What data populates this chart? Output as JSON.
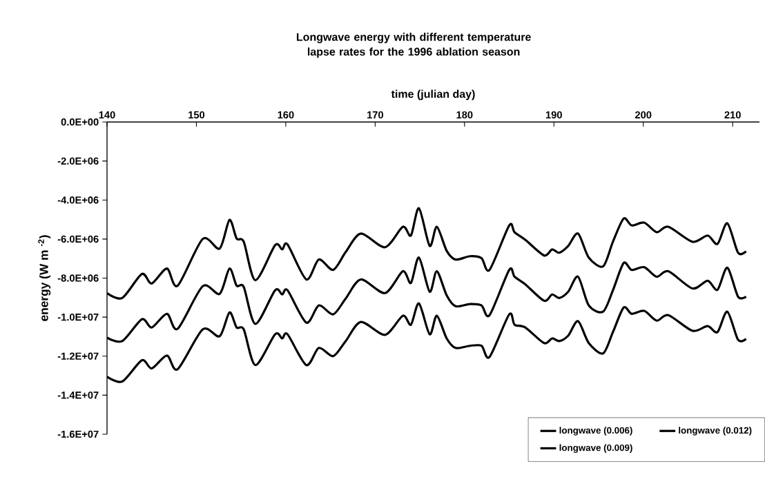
{
  "chart_data": {
    "type": "line",
    "title": "Longwave energy with different temperature lapse rates for the 1996 ablation season",
    "xlabel": "time (julian day)",
    "ylabel": "energy (W m $^{-2}$)",
    "x": [
      140,
      141.7,
      143.9,
      145,
      146.7,
      147.9,
      150.7,
      152.6,
      153.7,
      154.5,
      155.3,
      156.6,
      158.8,
      159.6,
      160.2,
      162.3,
      163.7,
      165.3,
      166.7,
      168.4,
      171.1,
      173.1,
      174.0,
      174.9,
      176.1,
      176.9,
      178.0,
      179.0,
      180.6,
      181.9,
      182.8,
      185.0,
      185.6,
      186.8,
      188.9,
      189.8,
      190.6,
      191.6,
      192.7,
      193.9,
      195.5,
      196.6,
      197.8,
      198.7,
      200.1,
      201.5,
      202.8,
      205.5,
      207.2,
      208.3,
      209.4,
      210.6,
      211.5
    ],
    "series": [
      {
        "name": "longwave (0.006)",
        "color": "#000000",
        "values": [
          -8770000.0,
          -9020000.0,
          -7790000.0,
          -8280000.0,
          -7510000.0,
          -8390000.0,
          -6000000.0,
          -6490000.0,
          -5020000.0,
          -5970000.0,
          -6140000.0,
          -8110000.0,
          -6320000.0,
          -6530000.0,
          -6280000.0,
          -8070000.0,
          -7050000.0,
          -7580000.0,
          -6670000.0,
          -5720000.0,
          -6420000.0,
          -5370000.0,
          -5820000.0,
          -4420000.0,
          -6350000.0,
          -5370000.0,
          -6600000.0,
          -7050000.0,
          -6880000.0,
          -6980000.0,
          -7580000.0,
          -5300000.0,
          -5650000.0,
          -6040000.0,
          -6840000.0,
          -6530000.0,
          -6700000.0,
          -6350000.0,
          -5720000.0,
          -6950000.0,
          -7400000.0,
          -6140000.0,
          -4950000.0,
          -5300000.0,
          -5160000.0,
          -5650000.0,
          -5370000.0,
          -6140000.0,
          -5820000.0,
          -6250000.0,
          -5190000.0,
          -6700000.0,
          -6630000.0
        ]
      },
      {
        "name": "longwave (0.012)",
        "color": "#000000",
        "values": [
          -13050000.0,
          -13300000.0,
          -12210000.0,
          -12630000.0,
          -11970000.0,
          -12670000.0,
          -10630000.0,
          -10980000.0,
          -9760000.0,
          -10530000.0,
          -10630000.0,
          -12460000.0,
          -10880000.0,
          -11090000.0,
          -10880000.0,
          -12460000.0,
          -11580000.0,
          -12000000.0,
          -11230000.0,
          -10250000.0,
          -10910000.0,
          -9930000.0,
          -10390000.0,
          -9300000.0,
          -10880000.0,
          -9930000.0,
          -11090000.0,
          -11580000.0,
          -11470000.0,
          -11470000.0,
          -12040000.0,
          -9860000.0,
          -10390000.0,
          -10530000.0,
          -11330000.0,
          -11090000.0,
          -11230000.0,
          -10950000.0,
          -10210000.0,
          -11330000.0,
          -11860000.0,
          -10770000.0,
          -9510000.0,
          -9830000.0,
          -9680000.0,
          -10180000.0,
          -9900000.0,
          -10700000.0,
          -10460000.0,
          -10770000.0,
          -9720000.0,
          -11160000.0,
          -11120000.0
        ]
      },
      {
        "name": "longwave (0.009)",
        "color": "#000000",
        "values": [
          -11050000.0,
          -11230000.0,
          -10110000.0,
          -10530000.0,
          -9830000.0,
          -10600000.0,
          -8420000.0,
          -8810000.0,
          -7510000.0,
          -8390000.0,
          -8460000.0,
          -10350000.0,
          -8630000.0,
          -8840000.0,
          -8630000.0,
          -10280000.0,
          -9400000.0,
          -9860000.0,
          -9050000.0,
          -8070000.0,
          -8770000.0,
          -7650000.0,
          -8250000.0,
          -6950000.0,
          -8700000.0,
          -7650000.0,
          -8880000.0,
          -9440000.0,
          -9330000.0,
          -9400000.0,
          -9900000.0,
          -7580000.0,
          -7930000.0,
          -8320000.0,
          -9160000.0,
          -8840000.0,
          -9020000.0,
          -8700000.0,
          -7930000.0,
          -9400000.0,
          -9720000.0,
          -8630000.0,
          -7230000.0,
          -7580000.0,
          -7440000.0,
          -7930000.0,
          -7650000.0,
          -8530000.0,
          -8140000.0,
          -8600000.0,
          -7470000.0,
          -8950000.0,
          -8950000.0
        ]
      }
    ],
    "xlim": [
      140,
      213
    ],
    "xticks": [
      140,
      150,
      160,
      170,
      180,
      190,
      200,
      210
    ],
    "ylim": [
      -16000000,
      0
    ],
    "yticks": [
      {
        "value": 0,
        "label": "0.0E+00"
      },
      {
        "value": -2000000,
        "label": "-2.0E+06"
      },
      {
        "value": -4000000,
        "label": "-4.0E+06"
      },
      {
        "value": -6000000,
        "label": "-6.0E+06"
      },
      {
        "value": -8000000,
        "label": "-8.0E+06"
      },
      {
        "value": -10000000,
        "label": "-1.0E+07"
      },
      {
        "value": -12000000,
        "label": "-1.2E+07"
      },
      {
        "value": -14000000,
        "label": "-1.4E+07"
      },
      {
        "value": -16000000,
        "label": "-1.6E+07"
      }
    ],
    "legend": "bottom right",
    "marker": "none",
    "line_style": "solid"
  }
}
